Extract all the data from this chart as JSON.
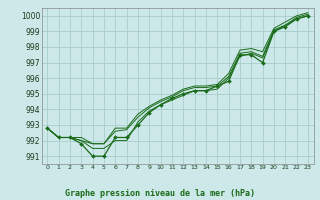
{
  "title": "Graphe pression niveau de la mer (hPa)",
  "background_color": "#cce8e8",
  "grid_color": "#aacccc",
  "line_color": "#1a6b1a",
  "xlim": [
    -0.5,
    23.5
  ],
  "ylim": [
    990.5,
    1000.5
  ],
  "yticks": [
    991,
    992,
    993,
    994,
    995,
    996,
    997,
    998,
    999,
    1000
  ],
  "x_ticks": [
    0,
    1,
    2,
    3,
    4,
    5,
    6,
    7,
    8,
    9,
    10,
    11,
    12,
    13,
    14,
    15,
    16,
    17,
    18,
    19,
    20,
    21,
    22,
    23
  ],
  "series": [
    [
      992.8,
      992.2,
      992.2,
      991.8,
      991.0,
      991.0,
      992.2,
      992.2,
      993.0,
      993.8,
      994.3,
      994.7,
      995.0,
      995.2,
      995.2,
      995.5,
      995.8,
      997.5,
      997.5,
      997.0,
      999.0,
      999.3,
      999.8,
      1000.0
    ],
    [
      992.8,
      992.2,
      992.2,
      992.0,
      991.8,
      991.8,
      992.6,
      992.7,
      993.5,
      994.1,
      994.5,
      994.8,
      995.2,
      995.4,
      995.4,
      995.5,
      996.1,
      997.6,
      997.7,
      997.4,
      999.1,
      999.4,
      999.9,
      1000.1
    ],
    [
      992.8,
      992.2,
      992.2,
      992.2,
      991.8,
      991.8,
      992.8,
      992.8,
      993.7,
      994.2,
      994.6,
      994.9,
      995.3,
      995.5,
      995.5,
      995.6,
      996.3,
      997.8,
      997.9,
      997.7,
      999.2,
      999.6,
      1000.0,
      1000.2
    ],
    [
      992.8,
      992.2,
      992.2,
      992.0,
      991.5,
      991.5,
      992.0,
      992.0,
      993.2,
      993.9,
      994.3,
      994.6,
      994.9,
      995.2,
      995.2,
      995.3,
      996.0,
      997.4,
      997.6,
      997.3,
      999.0,
      999.4,
      999.8,
      1000.0
    ]
  ]
}
